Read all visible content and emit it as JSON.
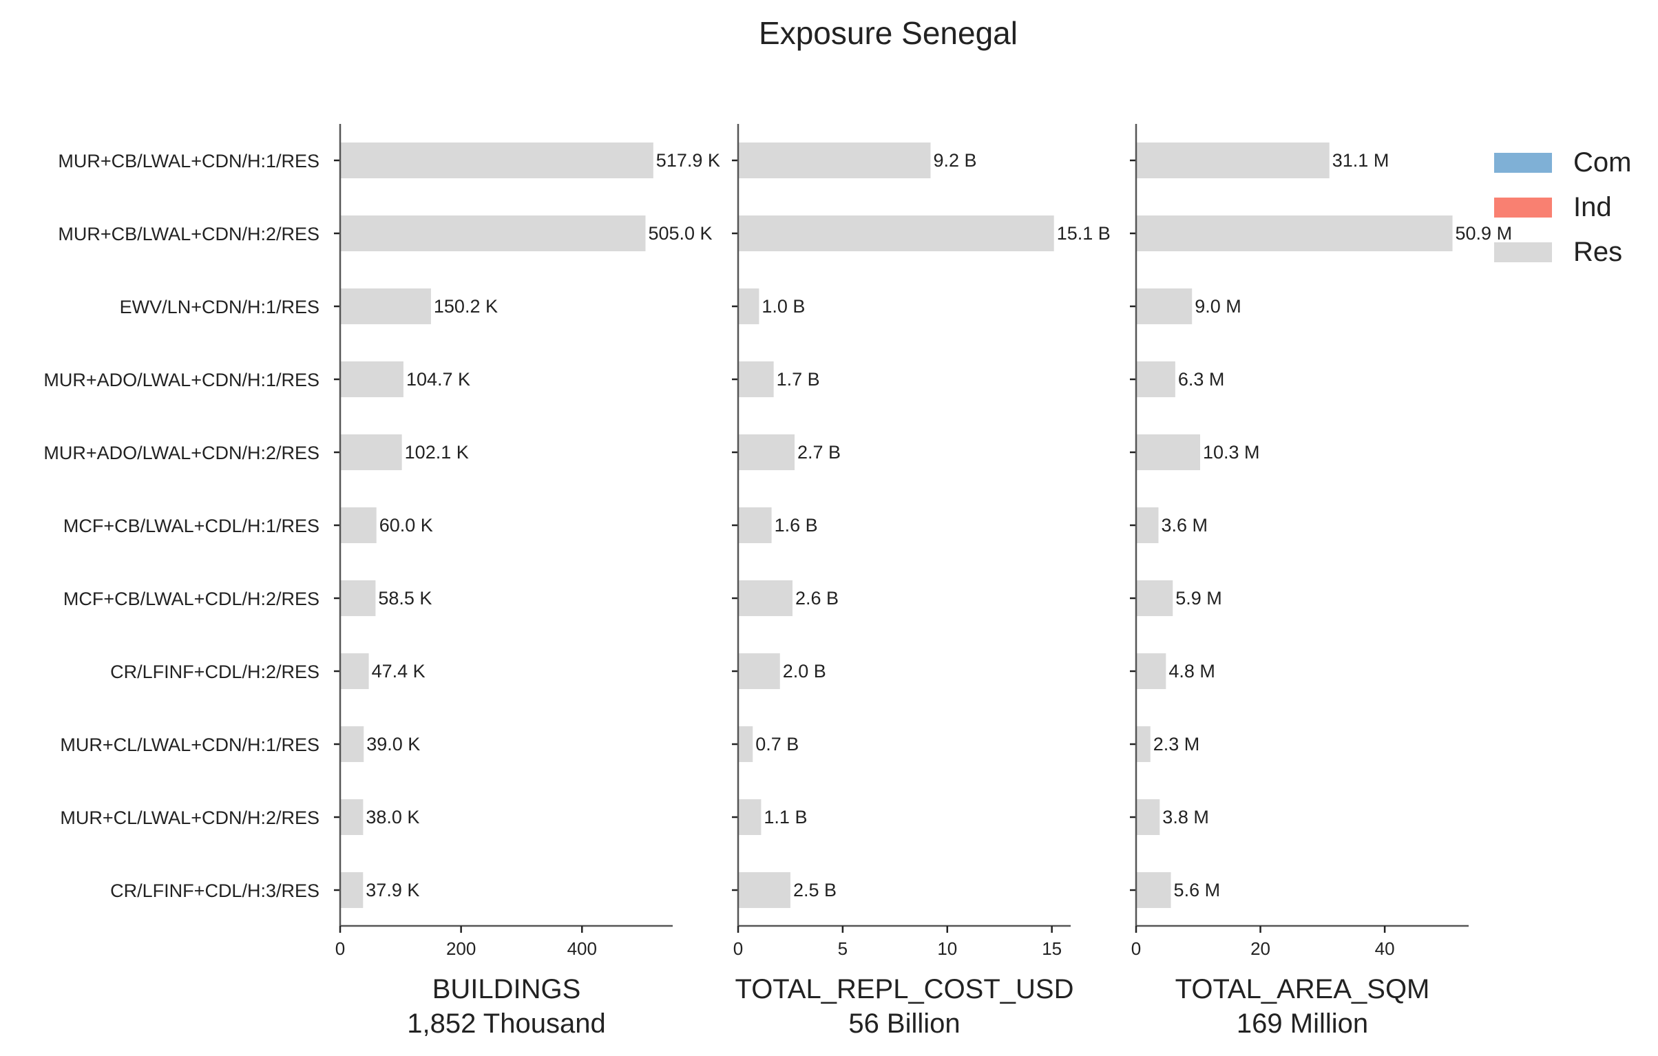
{
  "chart_data": {
    "type": "bar",
    "orientation": "horizontal",
    "title": "Exposure Senegal",
    "categories": [
      "MUR+CB/LWAL+CDN/H:1/RES",
      "MUR+CB/LWAL+CDN/H:2/RES",
      "EWV/LN+CDN/H:1/RES",
      "MUR+ADO/LWAL+CDN/H:1/RES",
      "MUR+ADO/LWAL+CDN/H:2/RES",
      "MCF+CB/LWAL+CDL/H:1/RES",
      "MCF+CB/LWAL+CDL/H:2/RES",
      "CR/LFINF+CDL/H:2/RES",
      "MUR+CL/LWAL+CDN/H:1/RES",
      "MUR+CL/LWAL+CDN/H:2/RES",
      "CR/LFINF+CDL/H:3/RES"
    ],
    "legend": {
      "position": "top-right",
      "items": [
        {
          "label": "Com",
          "color": "#7fb0d6"
        },
        {
          "label": "Ind",
          "color": "#f98071"
        },
        {
          "label": "Res",
          "color": "#d9d9d9"
        }
      ]
    },
    "grid": false,
    "panels": [
      {
        "xlabel": "BUILDINGS",
        "subtitle": "1,852 Thousand",
        "xlim": [
          0,
          550
        ],
        "xticks": [
          0,
          200,
          400
        ],
        "series": [
          {
            "name": "Res",
            "color": "#d9d9d9",
            "values": [
              517.9,
              505.0,
              150.2,
              104.7,
              102.1,
              60.0,
              58.5,
              47.4,
              39.0,
              38.0,
              37.9
            ]
          }
        ],
        "value_labels": [
          "517.9 K",
          "505.0 K",
          "150.2 K",
          "104.7 K",
          "102.1 K",
          "60.0 K",
          "58.5 K",
          "47.4 K",
          "39.0 K",
          "38.0 K",
          "37.9 K"
        ]
      },
      {
        "xlabel": "TOTAL_REPL_COST_USD",
        "subtitle": "56 Billion",
        "xlim": [
          0,
          15.9
        ],
        "xticks": [
          0,
          5,
          10,
          15
        ],
        "series": [
          {
            "name": "Res",
            "color": "#d9d9d9",
            "values": [
              9.2,
              15.1,
              1.0,
              1.7,
              2.7,
              1.6,
              2.6,
              2.0,
              0.7,
              1.1,
              2.5
            ]
          }
        ],
        "value_labels": [
          "9.2 B",
          "15.1 B",
          "1.0 B",
          "1.7 B",
          "2.7 B",
          "1.6 B",
          "2.6 B",
          "2.0 B",
          "0.7 B",
          "1.1 B",
          "2.5 B"
        ]
      },
      {
        "xlabel": "TOTAL_AREA_SQM",
        "subtitle": "169 Million",
        "xlim": [
          0,
          53.5
        ],
        "xticks": [
          0,
          20,
          40
        ],
        "series": [
          {
            "name": "Res",
            "color": "#d9d9d9",
            "values": [
              31.1,
              50.9,
              9.0,
              6.3,
              10.3,
              3.6,
              5.9,
              4.8,
              2.3,
              3.8,
              5.6
            ]
          }
        ],
        "value_labels": [
          "31.1 M",
          "50.9 M",
          "9.0 M",
          "6.3 M",
          "10.3 M",
          "3.6 M",
          "5.9 M",
          "4.8 M",
          "2.3 M",
          "3.8 M",
          "5.6 M"
        ]
      }
    ]
  }
}
